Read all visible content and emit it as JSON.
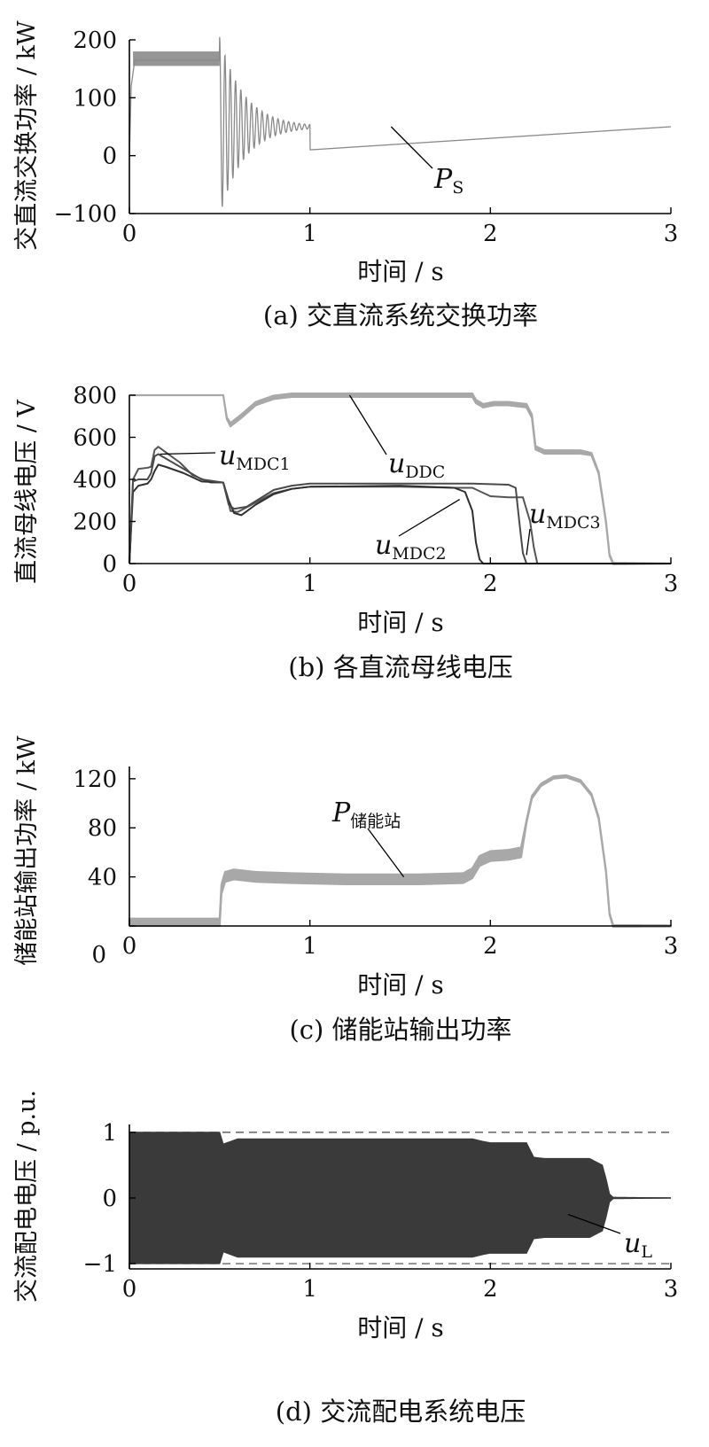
{
  "colors": {
    "light_gray": "#a8a8a8",
    "mid_gray": "#808080",
    "dark_gray": "#3a3a3a",
    "axis": "#000000"
  },
  "chart_data": [
    {
      "id": "a",
      "type": "line",
      "caption": "(a)  交直流系统交换功率",
      "xlabel": "时间 / s",
      "ylabel": "交直流交换功率 / kW",
      "xlim": [
        0,
        3
      ],
      "ylim": [
        -100,
        200
      ],
      "xticks": [
        0,
        1,
        2,
        3
      ],
      "yticks": [
        -100,
        0,
        100,
        200
      ],
      "grid": false,
      "series": [
        {
          "name": "PS",
          "label_main": "P",
          "label_sub": "S",
          "kind": "line",
          "color": "#8a8a8a",
          "base_points": [
            [
              0,
              0
            ],
            [
              0.01,
              120
            ],
            [
              0.03,
              165
            ],
            [
              0.5,
              165
            ],
            [
              0.5,
              0
            ],
            [
              3,
              50
            ]
          ],
          "band_points": [
            [
              0.02,
              155,
              180
            ],
            [
              0.5,
              155,
              180
            ]
          ],
          "oscillation": {
            "start": 0.5,
            "end": 1.0,
            "center": 50,
            "amplitude_start": 155,
            "decay_per_s": 7.5,
            "frequency_hz": 34
          }
        }
      ]
    },
    {
      "id": "b",
      "type": "line",
      "caption": "(b)  各直流母线电压",
      "xlabel": "时间 / s",
      "ylabel": "直流母线电压 / V",
      "xlim": [
        0,
        3
      ],
      "ylim": [
        0,
        800
      ],
      "xticks": [
        0,
        1,
        2,
        3
      ],
      "yticks": [
        0,
        200,
        400,
        600,
        800
      ],
      "grid": false,
      "series": [
        {
          "name": "uDDC",
          "label_main": "u",
          "label_sub": "DDC",
          "kind": "band",
          "color": "#a8a8a8",
          "points": [
            [
              0,
              800
            ],
            [
              0.52,
              800
            ],
            [
              0.54,
              690
            ],
            [
              0.56,
              660
            ],
            [
              0.62,
              700
            ],
            [
              0.7,
              760
            ],
            [
              0.8,
              790
            ],
            [
              0.9,
              800
            ],
            [
              1.9,
              800
            ],
            [
              1.92,
              770
            ],
            [
              1.96,
              750
            ],
            [
              2.02,
              760
            ],
            [
              2.1,
              760
            ],
            [
              2.2,
              750
            ],
            [
              2.23,
              700
            ],
            [
              2.25,
              550
            ],
            [
              2.3,
              530
            ],
            [
              2.5,
              530
            ],
            [
              2.56,
              520
            ],
            [
              2.6,
              430
            ],
            [
              2.64,
              200
            ],
            [
              2.66,
              40
            ],
            [
              2.68,
              0
            ],
            [
              3,
              0
            ]
          ],
          "halfwidth": [
            [
              0,
              0
            ],
            [
              0.52,
              0
            ],
            [
              0.56,
              8
            ],
            [
              1.9,
              8
            ],
            [
              2.23,
              8
            ],
            [
              2.5,
              8
            ],
            [
              2.6,
              4
            ],
            [
              3,
              0
            ]
          ]
        },
        {
          "name": "uMDC1",
          "label_main": "u",
          "label_sub": "MDC1",
          "kind": "line",
          "color": "#555555",
          "points": [
            [
              0,
              0
            ],
            [
              0.02,
              400
            ],
            [
              0.05,
              450
            ],
            [
              0.1,
              455
            ],
            [
              0.12,
              460
            ],
            [
              0.14,
              540
            ],
            [
              0.16,
              555
            ],
            [
              0.2,
              530
            ],
            [
              0.28,
              480
            ],
            [
              0.35,
              420
            ],
            [
              0.45,
              385
            ],
            [
              0.52,
              385
            ],
            [
              0.55,
              290
            ],
            [
              0.56,
              250
            ],
            [
              0.6,
              245
            ],
            [
              0.7,
              290
            ],
            [
              0.8,
              335
            ],
            [
              0.9,
              355
            ],
            [
              1.0,
              365
            ],
            [
              1.5,
              365
            ],
            [
              1.8,
              360
            ],
            [
              1.9,
              360
            ],
            [
              1.95,
              340
            ],
            [
              2.0,
              320
            ],
            [
              2.1,
              315
            ],
            [
              2.18,
              315
            ],
            [
              2.22,
              200
            ],
            [
              2.24,
              80
            ],
            [
              2.26,
              0
            ],
            [
              3,
              0
            ]
          ]
        },
        {
          "name": "uMDC2",
          "label_main": "u",
          "label_sub": "MDC2",
          "kind": "line",
          "color": "#303030",
          "points": [
            [
              0,
              0
            ],
            [
              0.02,
              340
            ],
            [
              0.05,
              370
            ],
            [
              0.1,
              380
            ],
            [
              0.12,
              400
            ],
            [
              0.14,
              440
            ],
            [
              0.16,
              470
            ],
            [
              0.2,
              460
            ],
            [
              0.3,
              430
            ],
            [
              0.4,
              390
            ],
            [
              0.52,
              385
            ],
            [
              0.55,
              300
            ],
            [
              0.58,
              240
            ],
            [
              0.62,
              230
            ],
            [
              0.7,
              280
            ],
            [
              0.8,
              330
            ],
            [
              0.9,
              355
            ],
            [
              1.0,
              365
            ],
            [
              1.5,
              370
            ],
            [
              1.8,
              360
            ],
            [
              1.86,
              340
            ],
            [
              1.9,
              250
            ],
            [
              1.92,
              100
            ],
            [
              1.94,
              20
            ],
            [
              1.96,
              0
            ],
            [
              3,
              0
            ]
          ]
        },
        {
          "name": "uMDC3",
          "label_main": "u",
          "label_sub": "MDC3",
          "kind": "line",
          "color": "#4a4a4a",
          "points": [
            [
              0,
              0
            ],
            [
              0.02,
              390
            ],
            [
              0.05,
              400
            ],
            [
              0.1,
              400
            ],
            [
              0.12,
              430
            ],
            [
              0.14,
              510
            ],
            [
              0.16,
              520
            ],
            [
              0.2,
              500
            ],
            [
              0.3,
              450
            ],
            [
              0.4,
              400
            ],
            [
              0.52,
              385
            ],
            [
              0.55,
              280
            ],
            [
              0.58,
              260
            ],
            [
              0.65,
              270
            ],
            [
              0.8,
              350
            ],
            [
              0.9,
              370
            ],
            [
              1.0,
              380
            ],
            [
              1.5,
              380
            ],
            [
              1.9,
              380
            ],
            [
              2.1,
              375
            ],
            [
              2.14,
              360
            ],
            [
              2.16,
              200
            ],
            [
              2.18,
              50
            ],
            [
              2.2,
              0
            ],
            [
              3,
              0
            ]
          ]
        }
      ]
    },
    {
      "id": "c",
      "type": "line",
      "caption": "(c)  储能站输出功率",
      "xlabel": "时间 / s",
      "ylabel": "储能站输出功率 / kW",
      "xlim": [
        0,
        3
      ],
      "ylim": [
        0,
        130
      ],
      "xticks": [
        0,
        1,
        2,
        3
      ],
      "yticks": [
        0,
        40,
        80,
        120
      ],
      "ytick_labels_shown": [
        40,
        80,
        120
      ],
      "grid": false,
      "series": [
        {
          "name": "P储能站",
          "label_main": "P",
          "label_sub": "储能站",
          "kind": "band",
          "color": "#a8a8a8",
          "points": [
            [
              0,
              3
            ],
            [
              0.5,
              3
            ],
            [
              0.51,
              30
            ],
            [
              0.53,
              40
            ],
            [
              0.58,
              42
            ],
            [
              0.7,
              40
            ],
            [
              0.9,
              39
            ],
            [
              1.2,
              38
            ],
            [
              1.6,
              38
            ],
            [
              1.85,
              39
            ],
            [
              1.9,
              43
            ],
            [
              1.94,
              53
            ],
            [
              2.0,
              57
            ],
            [
              2.1,
              58
            ],
            [
              2.17,
              60
            ],
            [
              2.2,
              85
            ],
            [
              2.23,
              105
            ],
            [
              2.28,
              115
            ],
            [
              2.35,
              121
            ],
            [
              2.42,
              122
            ],
            [
              2.5,
              118
            ],
            [
              2.56,
              107
            ],
            [
              2.6,
              88
            ],
            [
              2.64,
              45
            ],
            [
              2.66,
              10
            ],
            [
              2.68,
              0
            ],
            [
              3,
              0
            ]
          ],
          "halfwidth": [
            [
              0,
              3
            ],
            [
              0.5,
              3
            ],
            [
              0.52,
              4
            ],
            [
              1.9,
              4
            ],
            [
              2.17,
              4
            ],
            [
              2.2,
              1
            ],
            [
              3,
              0.5
            ]
          ]
        }
      ]
    },
    {
      "id": "d",
      "type": "line",
      "caption": "(d)  交流配电系统电压",
      "xlabel": "时间 / s",
      "ylabel": "交流配电电压 / p.u.",
      "xlim": [
        0,
        3
      ],
      "ylim": [
        -1.08,
        1.12
      ],
      "xticks": [
        0,
        1,
        2,
        3
      ],
      "yticks": [
        -1,
        0,
        1
      ],
      "grid": false,
      "reference_lines": [
        1,
        -1
      ],
      "series": [
        {
          "name": "uL",
          "label_main": "u",
          "label_sub": "L",
          "kind": "envelope",
          "color": "#3a3a3a",
          "envelope": [
            [
              0,
              1.0
            ],
            [
              0.5,
              1.0
            ],
            [
              0.52,
              0.82
            ],
            [
              0.56,
              0.86
            ],
            [
              0.6,
              0.9
            ],
            [
              0.8,
              0.9
            ],
            [
              1.9,
              0.9
            ],
            [
              1.96,
              0.86
            ],
            [
              2.0,
              0.84
            ],
            [
              2.2,
              0.84
            ],
            [
              2.24,
              0.62
            ],
            [
              2.3,
              0.6
            ],
            [
              2.55,
              0.6
            ],
            [
              2.62,
              0.5
            ],
            [
              2.64,
              0.3
            ],
            [
              2.66,
              0.06
            ],
            [
              2.68,
              0.01
            ],
            [
              3,
              0
            ]
          ]
        }
      ]
    }
  ]
}
